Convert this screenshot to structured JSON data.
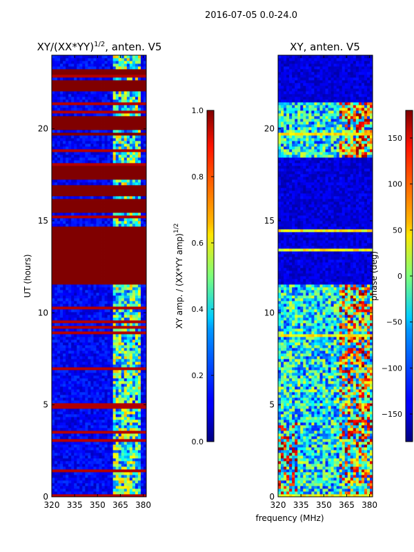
{
  "suptitle": "2016-07-05 0.0-24.0",
  "chart_data": [
    {
      "type": "heatmap",
      "title": "XY/(XX*YY)^1/2, anten. V5",
      "title_main": "XY/(XX*YY)",
      "title_exp": "1/2",
      "title_rest": ", anten. V5",
      "xlabel": "frequency (MHz)",
      "ylabel": "UT (hours)",
      "xlim": [
        320,
        382
      ],
      "ylim": [
        0,
        24
      ],
      "xticks": [
        320,
        335,
        350,
        365,
        380
      ],
      "yticks": [
        0,
        5,
        10,
        15,
        20
      ],
      "colorbar": {
        "label": "XY amp. / (XX*YY amp)^1/2",
        "label_main": "XY amp. / (XX*YY amp)",
        "label_exp": "1/2",
        "range": [
          0.0,
          1.0
        ],
        "ticks": [
          "0.0",
          "0.2",
          "0.4",
          "0.6",
          "0.8",
          "1.0"
        ],
        "tick_values": [
          0.0,
          0.2,
          0.4,
          0.6,
          0.8,
          1.0
        ],
        "colormap": "jet"
      },
      "saturated_bands_hours": [
        [
          11.6,
          14.7
        ],
        [
          15.4,
          16.2
        ],
        [
          16.4,
          17.0
        ],
        [
          17.3,
          18.0
        ],
        [
          19.6,
          19.8
        ],
        [
          20.0,
          20.7
        ],
        [
          22.0,
          22.7
        ],
        [
          23.0,
          23.3
        ]
      ],
      "bright_freq_band_mhz": [
        361,
        378
      ]
    },
    {
      "type": "heatmap",
      "title": "XY, anten. V5",
      "xlabel": "frequency (MHz)",
      "ylabel": "",
      "xlim": [
        320,
        382
      ],
      "ylim": [
        0,
        24
      ],
      "xticks": [
        320,
        335,
        350,
        365,
        380
      ],
      "yticks": [
        0,
        5,
        10,
        15,
        20
      ],
      "colorbar": {
        "label": "phase (deg)",
        "range": [
          -180,
          180
        ],
        "ticks": [
          "−150",
          "−100",
          "−50",
          "0",
          "50",
          "100",
          "150"
        ],
        "tick_values": [
          -150,
          -100,
          -50,
          0,
          50,
          100,
          150
        ],
        "colormap": "jet"
      },
      "noisy_bands_hours": [
        [
          0,
          11.6
        ],
        [
          18.4,
          21.4
        ]
      ],
      "quiet_bands_hours": [
        [
          11.6,
          14.7
        ],
        [
          15.4,
          18.4
        ],
        [
          21.4,
          24
        ]
      ]
    }
  ],
  "colors": {
    "jet_dark_blue": "#00008f",
    "jet_dark_red": "#800000",
    "frame": "#000000",
    "background": "#ffffff"
  }
}
